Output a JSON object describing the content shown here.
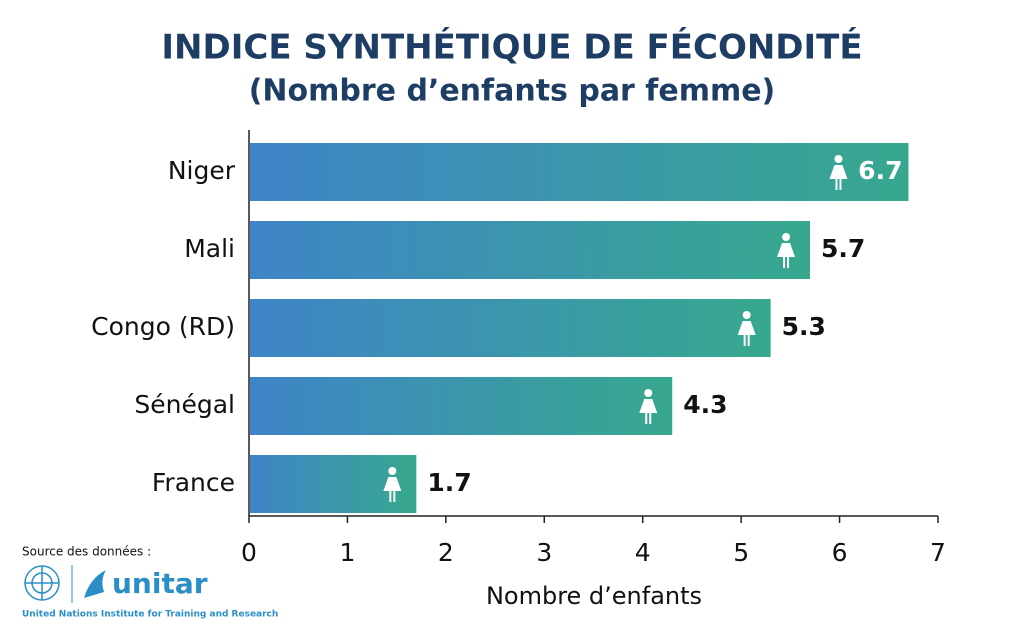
{
  "chart_data": {
    "type": "bar",
    "orientation": "horizontal",
    "title": "INDICE SYNTHÉTIQUE DE FÉCONDITÉ",
    "subtitle": "(Nombre d’enfants par femme)",
    "categories": [
      "Niger",
      "Mali",
      "Congo (RD)",
      "Sénégal",
      "France"
    ],
    "values": [
      6.7,
      5.7,
      5.3,
      4.3,
      1.7
    ],
    "color": [
      "#3f84c8",
      "#37a88e"
    ],
    "xlim": [
      0,
      7
    ],
    "xticks": [
      0,
      1,
      2,
      3,
      4,
      5,
      6,
      7
    ],
    "x_label": "Nombre d’enfants",
    "source_label": "Source des données :",
    "logo_text": "unitar",
    "logo_subtitle": "United Nations Institute for Training and Research"
  }
}
